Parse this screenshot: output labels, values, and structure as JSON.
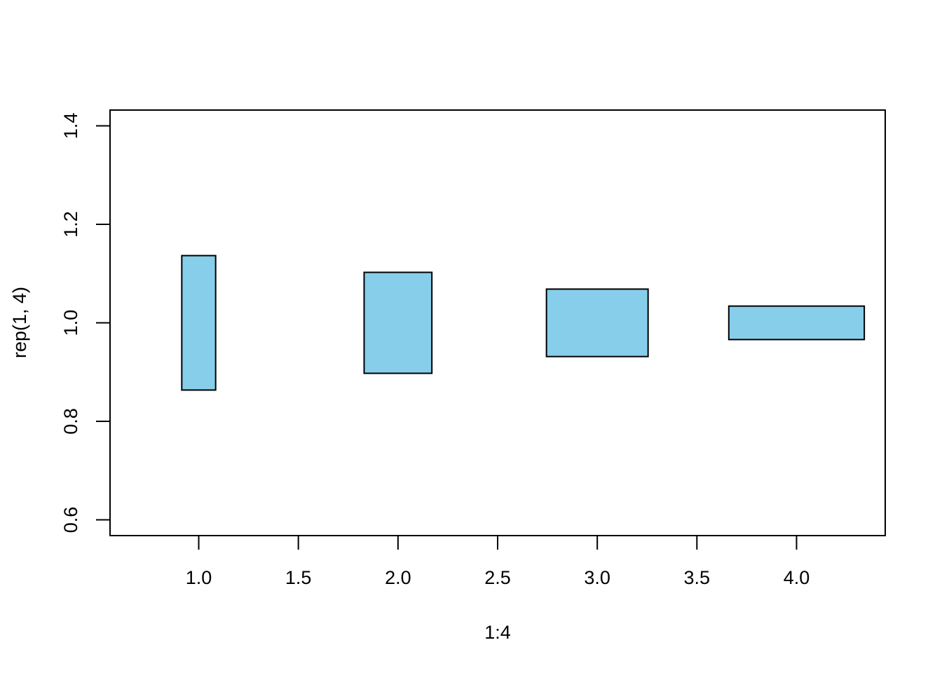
{
  "chart_data": {
    "type": "rectangles",
    "title": "",
    "xlabel": "1:4",
    "ylabel": "rep(1, 4)",
    "xlim": [
      0.555,
      4.445
    ],
    "ylim": [
      0.568,
      1.432
    ],
    "x_ticks": [
      1.0,
      1.5,
      2.0,
      2.5,
      3.0,
      3.5,
      4.0
    ],
    "x_tick_labels": [
      "1.0",
      "1.5",
      "2.0",
      "2.5",
      "3.0",
      "3.5",
      "4.0"
    ],
    "y_ticks": [
      0.6,
      0.8,
      1.0,
      1.2,
      1.4
    ],
    "y_tick_labels": [
      "0.6",
      "0.8",
      "1.0",
      "1.2",
      "1.4"
    ],
    "fill_color": "#87CEEB",
    "border_color": "#000000",
    "grid": false,
    "rectangles": [
      {
        "x": 1,
        "y": 1,
        "width": 0.17,
        "height": 0.273
      },
      {
        "x": 2,
        "y": 1,
        "width": 0.34,
        "height": 0.205
      },
      {
        "x": 3,
        "y": 1,
        "width": 0.51,
        "height": 0.137
      },
      {
        "x": 4,
        "y": 1,
        "width": 0.68,
        "height": 0.068
      }
    ]
  }
}
